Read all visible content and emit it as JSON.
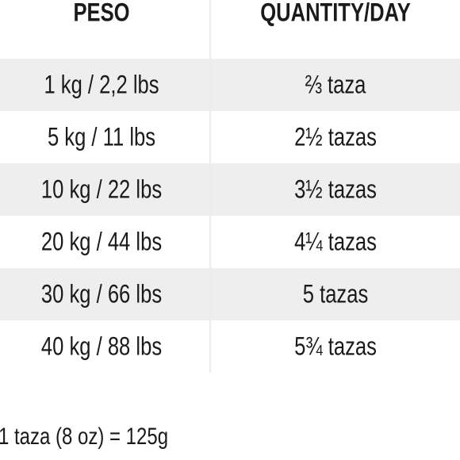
{
  "table": {
    "header": [
      "PESO",
      "QUANTITY/DAY"
    ],
    "rows": [
      [
        "1 kg / 2,2 lbs",
        "⅔ taza"
      ],
      [
        "5 kg / 11 lbs",
        "2½ tazas"
      ],
      [
        "10 kg / 22 lbs",
        "3½ tazas"
      ],
      [
        "20 kg / 44 lbs",
        "4¼ tazas"
      ],
      [
        "30 kg / 66 lbs",
        "5 tazas"
      ],
      [
        "40 kg / 88 lbs",
        "5¾ tazas"
      ]
    ]
  },
  "footnote": "1 taza (8 oz) = 125g"
}
